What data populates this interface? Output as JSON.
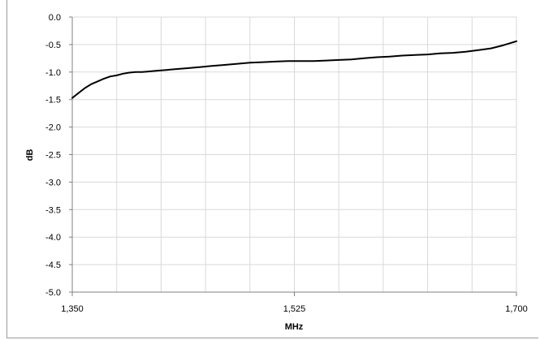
{
  "chart_data": {
    "type": "line",
    "title": "",
    "xlabel": "MHz",
    "ylabel": "dB",
    "xlim": [
      1350,
      1700
    ],
    "ylim": [
      -5.0,
      0.0
    ],
    "x_ticks": [
      1350,
      1525,
      1700
    ],
    "x_tick_labels": [
      "1,350",
      "1,525",
      "1,700"
    ],
    "y_ticks": [
      0.0,
      -0.5,
      -1.0,
      -1.5,
      -2.0,
      -2.5,
      -3.0,
      -3.5,
      -4.0,
      -4.5,
      -5.0
    ],
    "y_tick_labels": [
      "0.0",
      "-0.5",
      "-1.0",
      "-1.5",
      "-2.0",
      "-2.5",
      "-3.0",
      "-3.5",
      "-4.0",
      "-4.5",
      "-5.0"
    ],
    "grid": true,
    "line_color": "#000000",
    "grid_color": "#d9d9d9",
    "series": [
      {
        "x": [
          1350,
          1355,
          1360,
          1365,
          1370,
          1375,
          1380,
          1385,
          1390,
          1395,
          1400,
          1405,
          1410,
          1415,
          1420,
          1425,
          1430,
          1435,
          1440,
          1450,
          1460,
          1470,
          1480,
          1490,
          1500,
          1510,
          1520,
          1525,
          1530,
          1540,
          1550,
          1560,
          1570,
          1580,
          1590,
          1600,
          1610,
          1620,
          1630,
          1640,
          1650,
          1660,
          1670,
          1680,
          1690,
          1700
        ],
        "y": [
          -1.47,
          -1.38,
          -1.29,
          -1.22,
          -1.17,
          -1.12,
          -1.08,
          -1.06,
          -1.03,
          -1.01,
          -1.0,
          -1.0,
          -0.99,
          -0.98,
          -0.97,
          -0.96,
          -0.95,
          -0.94,
          -0.93,
          -0.91,
          -0.89,
          -0.87,
          -0.85,
          -0.83,
          -0.82,
          -0.81,
          -0.8,
          -0.8,
          -0.8,
          -0.8,
          -0.79,
          -0.78,
          -0.77,
          -0.75,
          -0.73,
          -0.72,
          -0.7,
          -0.69,
          -0.68,
          -0.66,
          -0.65,
          -0.63,
          -0.6,
          -0.57,
          -0.51,
          -0.44
        ]
      }
    ]
  }
}
